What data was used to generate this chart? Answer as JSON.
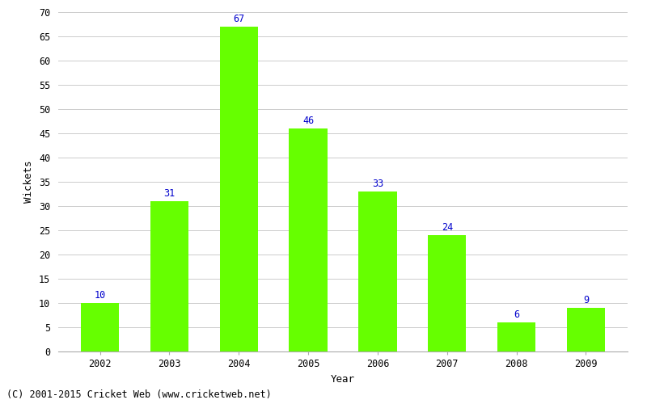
{
  "years": [
    "2002",
    "2003",
    "2004",
    "2005",
    "2006",
    "2007",
    "2008",
    "2009"
  ],
  "wickets": [
    10,
    31,
    67,
    46,
    33,
    24,
    6,
    9
  ],
  "bar_color": "#66ff00",
  "label_color": "#0000cc",
  "xlabel": "Year",
  "ylabel": "Wickets",
  "ylim": [
    0,
    70
  ],
  "yticks": [
    0,
    5,
    10,
    15,
    20,
    25,
    30,
    35,
    40,
    45,
    50,
    55,
    60,
    65,
    70
  ],
  "footnote": "(C) 2001-2015 Cricket Web (www.cricketweb.net)",
  "background_color": "#ffffff",
  "grid_color": "#cccccc",
  "label_fontsize": 8.5,
  "axis_label_fontsize": 9,
  "footnote_fontsize": 8.5,
  "bar_width": 0.55
}
